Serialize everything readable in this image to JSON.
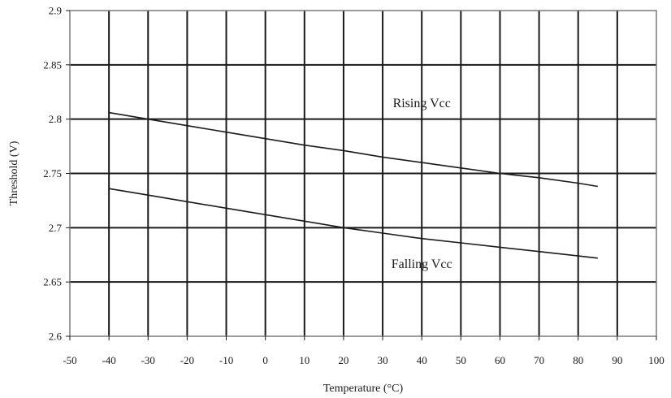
{
  "chart_data": {
    "type": "line",
    "title": "",
    "xlabel": "Temperature (°C)",
    "ylabel": "Threshold (V)",
    "xlim": [
      -50,
      100
    ],
    "ylim": [
      2.6,
      2.9
    ],
    "x_ticks": [
      "-50",
      "-40",
      "-30",
      "-20",
      "-10",
      "0",
      "10",
      "20",
      "30",
      "40",
      "50",
      "60",
      "70",
      "80",
      "90",
      "100"
    ],
    "y_ticks": [
      "2.6",
      "2.65",
      "2.7",
      "2.75",
      "2.8",
      "2.85",
      "2.9"
    ],
    "grid": true,
    "legend": "none",
    "series": [
      {
        "name": "Rising Vcc",
        "x": [
          -40,
          -30,
          -20,
          -10,
          0,
          10,
          20,
          30,
          40,
          50,
          60,
          70,
          80,
          85
        ],
        "y": [
          2.806,
          2.8,
          2.794,
          2.788,
          2.782,
          2.776,
          2.771,
          2.765,
          2.76,
          2.755,
          2.75,
          2.746,
          2.741,
          2.738
        ]
      },
      {
        "name": "Falling Vcc",
        "x": [
          -40,
          -30,
          -20,
          -10,
          0,
          10,
          20,
          30,
          40,
          50,
          60,
          70,
          80,
          85
        ],
        "y": [
          2.736,
          2.73,
          2.724,
          2.718,
          2.712,
          2.706,
          2.7,
          2.695,
          2.69,
          2.686,
          2.682,
          2.678,
          2.674,
          2.672
        ]
      }
    ],
    "annotations": [
      {
        "text": "Rising Vcc",
        "x": 40,
        "y": 2.811
      },
      {
        "text": "Falling Vcc",
        "x": 40,
        "y": 2.663
      }
    ]
  }
}
